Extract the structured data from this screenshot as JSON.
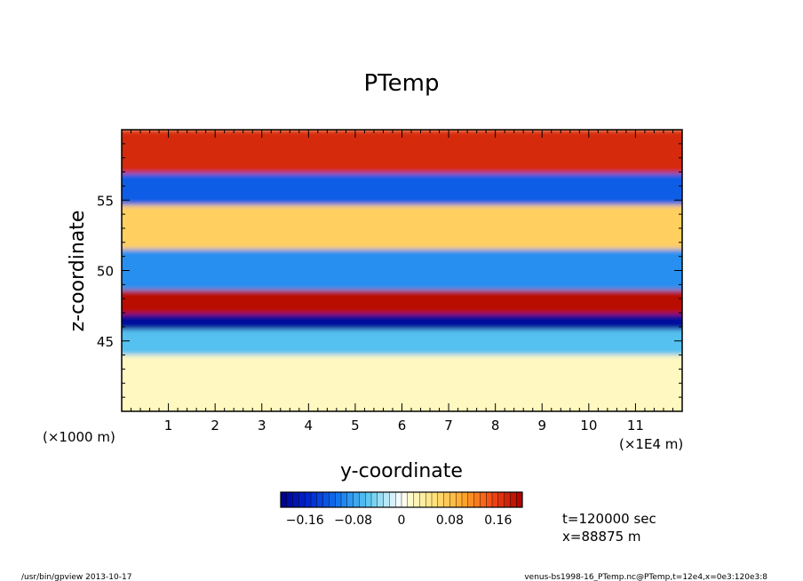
{
  "chart_data": {
    "type": "heatmap",
    "title": "PTemp",
    "xlabel": "y-coordinate",
    "ylabel": "z-coordinate",
    "x_unit_left": "(×1000 m)",
    "x_unit_right": "(×1E4 m)",
    "xlim": [
      0,
      12
    ],
    "ylim": [
      40,
      60
    ],
    "x_ticks": [
      1,
      2,
      3,
      4,
      5,
      6,
      7,
      8,
      9,
      10,
      11
    ],
    "x_tick_labels": [
      "1",
      "2",
      "3",
      "4",
      "5",
      "6",
      "7",
      "8",
      "9",
      "10",
      "11"
    ],
    "y_ticks": [
      45,
      50,
      55
    ],
    "y_tick_labels": [
      "45",
      "50",
      "55"
    ],
    "colorbar": {
      "min": -0.2,
      "max": 0.2,
      "tick_values": [
        -0.16,
        -0.08,
        0,
        0.08,
        0.16
      ],
      "tick_labels": [
        "−0.16",
        "−0.08",
        "0",
        "0.08",
        "0.16"
      ]
    },
    "bands": [
      {
        "z": 57.5,
        "value": 0.17
      },
      {
        "z": 56.3,
        "value": -0.12
      },
      {
        "z": 53.0,
        "value": 0.07
      },
      {
        "z": 50.0,
        "value": -0.09
      },
      {
        "z": 47.2,
        "value": 0.19
      },
      {
        "z": 46.6,
        "value": -0.19
      },
      {
        "z": 45.0,
        "value": -0.06
      },
      {
        "z": 43.0,
        "value": 0.02
      }
    ]
  },
  "annotations": {
    "time": "t=120000 sec",
    "x_pos": "x=88875 m"
  },
  "footer": {
    "left": "/usr/bin/gpview   2013-10-17",
    "right": "venus-bs1998-16_PTemp.nc@PTemp,t=12e4,x=0e3:120e3:8"
  }
}
